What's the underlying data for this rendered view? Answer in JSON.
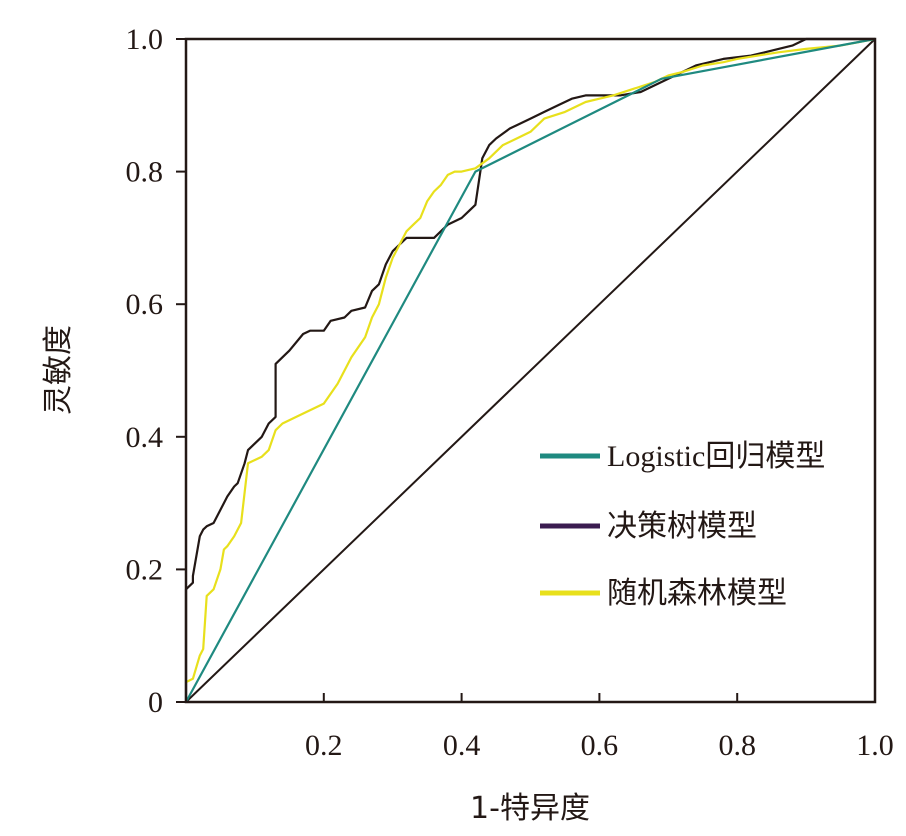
{
  "chart_data": {
    "type": "line",
    "title": "",
    "xlabel": "1-特异度",
    "ylabel": "灵敏度",
    "xlim": [
      0,
      1
    ],
    "ylim": [
      0,
      1
    ],
    "x_ticks": [
      "0.2",
      "0.4",
      "0.6",
      "0.8",
      "1.0"
    ],
    "x_tick_values": [
      0.2,
      0.4,
      0.6,
      0.8,
      1.0
    ],
    "y_ticks": [
      "0",
      "0.2",
      "0.4",
      "0.6",
      "0.8",
      "1.0"
    ],
    "y_tick_values": [
      0,
      0.2,
      0.4,
      0.6,
      0.8,
      1.0
    ],
    "grid": false,
    "legend_position": "bottom-right",
    "reference_line": {
      "x": [
        0,
        1
      ],
      "y": [
        0,
        1
      ],
      "color": "#231815"
    },
    "series": [
      {
        "name": "Logistic回归模型",
        "color": "#1f8a80",
        "x": [
          0,
          0.42,
          0.69,
          1.0
        ],
        "y": [
          0,
          0.8,
          0.94,
          1.0
        ]
      },
      {
        "name": "决策树模型",
        "color": "#3b1c50",
        "x": [
          0,
          0,
          0.01,
          0.01,
          0.02,
          0.025,
          0.03,
          0.04,
          0.055,
          0.06,
          0.07,
          0.075,
          0.085,
          0.09,
          0.1,
          0.11,
          0.12,
          0.13,
          0.13,
          0.15,
          0.17,
          0.18,
          0.2,
          0.21,
          0.23,
          0.24,
          0.26,
          0.27,
          0.28,
          0.29,
          0.3,
          0.31,
          0.32,
          0.33,
          0.34,
          0.36,
          0.38,
          0.4,
          0.41,
          0.42,
          0.43,
          0.44,
          0.45,
          0.47,
          0.48,
          0.5,
          0.52,
          0.54,
          0.56,
          0.58,
          0.6,
          0.63,
          0.66,
          0.68,
          0.7,
          0.72,
          0.74,
          0.76,
          0.78,
          0.82,
          0.84,
          0.86,
          0.88,
          0.9,
          0.91,
          0.92,
          0.94,
          0.97,
          1.0
        ],
        "y": [
          0,
          0.17,
          0.18,
          0.19,
          0.25,
          0.26,
          0.265,
          0.27,
          0.3,
          0.31,
          0.325,
          0.33,
          0.36,
          0.38,
          0.39,
          0.4,
          0.42,
          0.43,
          0.51,
          0.53,
          0.555,
          0.56,
          0.56,
          0.575,
          0.58,
          0.59,
          0.595,
          0.62,
          0.63,
          0.66,
          0.68,
          0.69,
          0.7,
          0.7,
          0.7,
          0.7,
          0.72,
          0.73,
          0.74,
          0.75,
          0.82,
          0.84,
          0.85,
          0.865,
          0.87,
          0.88,
          0.89,
          0.9,
          0.91,
          0.915,
          0.915,
          0.915,
          0.92,
          0.93,
          0.94,
          0.95,
          0.96,
          0.965,
          0.97,
          0.975,
          0.98,
          0.985,
          0.99,
          1.0,
          1.0,
          1.0,
          1.0,
          1.0,
          1.0
        ]
      },
      {
        "name": "随机森林模型",
        "color": "#e8e01c",
        "x": [
          0,
          0.01,
          0.02,
          0.025,
          0.03,
          0.04,
          0.05,
          0.055,
          0.06,
          0.07,
          0.08,
          0.09,
          0.1,
          0.11,
          0.12,
          0.13,
          0.14,
          0.16,
          0.18,
          0.2,
          0.22,
          0.24,
          0.26,
          0.27,
          0.28,
          0.29,
          0.3,
          0.31,
          0.32,
          0.33,
          0.34,
          0.35,
          0.36,
          0.37,
          0.38,
          0.39,
          0.4,
          0.42,
          0.44,
          0.46,
          0.48,
          0.5,
          0.52,
          0.55,
          0.58,
          0.6,
          0.62,
          0.65,
          0.68,
          0.7,
          0.72,
          0.75,
          0.78,
          0.8,
          0.83,
          0.86,
          0.9,
          0.95,
          1.0
        ],
        "y": [
          0.03,
          0.035,
          0.07,
          0.08,
          0.16,
          0.17,
          0.2,
          0.23,
          0.235,
          0.25,
          0.27,
          0.36,
          0.365,
          0.37,
          0.38,
          0.41,
          0.42,
          0.43,
          0.44,
          0.45,
          0.48,
          0.52,
          0.55,
          0.58,
          0.6,
          0.64,
          0.67,
          0.69,
          0.71,
          0.72,
          0.73,
          0.755,
          0.77,
          0.78,
          0.795,
          0.8,
          0.8,
          0.805,
          0.82,
          0.84,
          0.85,
          0.86,
          0.88,
          0.89,
          0.905,
          0.91,
          0.915,
          0.925,
          0.935,
          0.945,
          0.95,
          0.96,
          0.965,
          0.97,
          0.975,
          0.98,
          0.985,
          0.99,
          1.0
        ]
      }
    ]
  }
}
